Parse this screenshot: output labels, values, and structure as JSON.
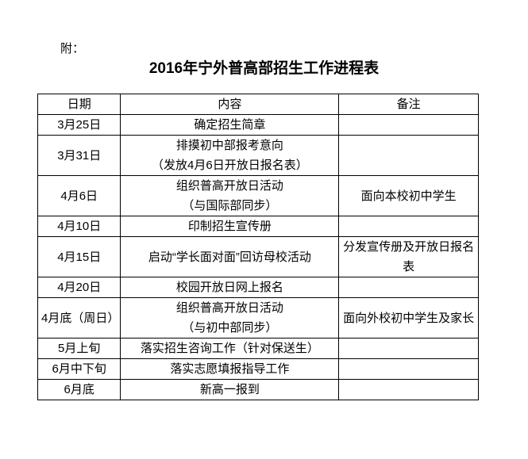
{
  "document": {
    "prefix": "附：",
    "title": "2016年宁外普高部招生工作进程表"
  },
  "table": {
    "headers": [
      "日期",
      "内容",
      "备注"
    ],
    "rows": [
      {
        "date": "3月25日",
        "content": [
          "确定招生简章"
        ],
        "note": ""
      },
      {
        "date": "3月31日",
        "content": [
          "排摸初中部报考意向",
          "（发放4月6日开放日报名表）"
        ],
        "note": ""
      },
      {
        "date": "4月6日",
        "content": [
          "组织普高开放日活动",
          "（与国际部同步）"
        ],
        "note": "面向本校初中学生"
      },
      {
        "date": "4月10日",
        "content": [
          "印制招生宣传册"
        ],
        "note": ""
      },
      {
        "date": "4月15日",
        "content": [
          "启动“学长面对面”回访母校活动"
        ],
        "note": "分发宣传册及开放日报名表"
      },
      {
        "date": "4月20日",
        "content": [
          "校园开放日网上报名"
        ],
        "note": ""
      },
      {
        "date": "4月底（周日）",
        "content": [
          "组织普高开放日活动",
          "（与初中部同步）"
        ],
        "note": "面向外校初中学生及家长"
      },
      {
        "date": "5月上旬",
        "content": [
          "落实招生咨询工作（针对保送生）"
        ],
        "note": ""
      },
      {
        "date": "6月中下旬",
        "content": [
          "落实志愿填报指导工作"
        ],
        "note": ""
      },
      {
        "date": "6月底",
        "content": [
          "新高一报到"
        ],
        "note": ""
      }
    ]
  }
}
